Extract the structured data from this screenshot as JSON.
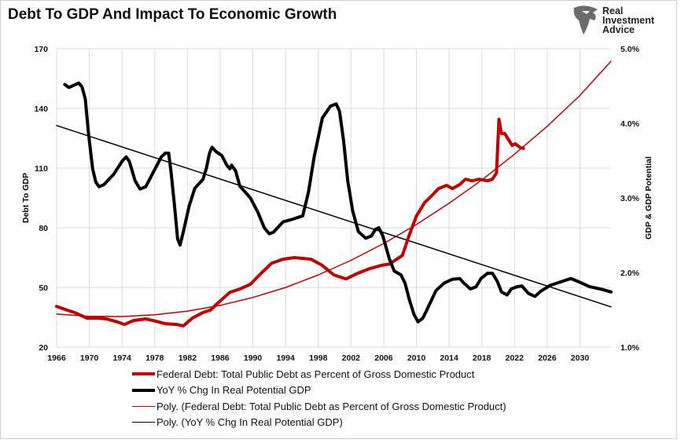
{
  "title": "Debt To GDP And Impact To Economic Growth",
  "logo": {
    "lines": [
      "Real",
      "Investment",
      "Advice"
    ],
    "icon": "eagle-head-icon"
  },
  "chart_data": {
    "type": "line",
    "title": "Debt To GDP And Impact To Economic Growth",
    "xlabel": "",
    "ylabel": "Debt To GDP",
    "y2label": "GDP & GDP Potential",
    "xlim": [
      1966,
      2033.8
    ],
    "ylim": [
      20,
      170
    ],
    "y2lim": [
      1.0,
      5.0
    ],
    "grid": true,
    "legend_position": "bottom",
    "x_ticks": [
      "1966",
      "1970",
      "1974",
      "1978",
      "1982",
      "1986",
      "1990",
      "1994",
      "1998",
      "2002",
      "2006",
      "2010",
      "2014",
      "2018",
      "2022",
      "2026",
      "2030"
    ],
    "y_ticks": [
      "170",
      "140",
      "110",
      "80",
      "50",
      "20"
    ],
    "y2_ticks": [
      "5.0%",
      "4.0%",
      "3.0%",
      "2.0%",
      "1.0%"
    ],
    "series": [
      {
        "name": "Federal Debt: Total Public Debt as Percent of Gross Domestic Product",
        "axis": "left",
        "color": "#c00000",
        "width": "thick",
        "points": [
          [
            1966.0,
            40.5
          ],
          [
            1967.3,
            38.6
          ],
          [
            1968.2,
            37.4
          ],
          [
            1969.7,
            34.6
          ],
          [
            1971.1,
            34.6
          ],
          [
            1972.1,
            34.2
          ],
          [
            1973.5,
            32.6
          ],
          [
            1974.3,
            31.4
          ],
          [
            1975.4,
            33.4
          ],
          [
            1976.9,
            34.2
          ],
          [
            1977.8,
            33.4
          ],
          [
            1979.3,
            31.8
          ],
          [
            1980.7,
            31.4
          ],
          [
            1981.5,
            30.7
          ],
          [
            1982.6,
            34.6
          ],
          [
            1983.9,
            37.4
          ],
          [
            1984.8,
            38.6
          ],
          [
            1985.8,
            42.5
          ],
          [
            1987.2,
            47.6
          ],
          [
            1988.4,
            49.2
          ],
          [
            1989.7,
            51.6
          ],
          [
            1991.0,
            57.1
          ],
          [
            1992.3,
            62.2
          ],
          [
            1993.7,
            64.2
          ],
          [
            1995.1,
            65.0
          ],
          [
            1997.1,
            64.2
          ],
          [
            1998.5,
            61.1
          ],
          [
            1999.9,
            56.3
          ],
          [
            2001.4,
            54.3
          ],
          [
            2002.8,
            57.1
          ],
          [
            2004.3,
            59.5
          ],
          [
            2005.7,
            61.1
          ],
          [
            2006.7,
            61.8
          ],
          [
            2007.6,
            64.2
          ],
          [
            2008.3,
            66.2
          ],
          [
            2009.1,
            76.1
          ],
          [
            2010.0,
            85.9
          ],
          [
            2011.0,
            92.6
          ],
          [
            2011.8,
            95.8
          ],
          [
            2012.7,
            99.7
          ],
          [
            2013.7,
            101.3
          ],
          [
            2014.4,
            99.7
          ],
          [
            2015.3,
            101.7
          ],
          [
            2016.0,
            104.4
          ],
          [
            2016.8,
            103.6
          ],
          [
            2017.7,
            104.4
          ],
          [
            2018.7,
            103.6
          ],
          [
            2019.3,
            104.4
          ],
          [
            2019.8,
            107.6
          ],
          [
            2020.1,
            134.5
          ],
          [
            2020.4,
            127.4
          ],
          [
            2020.8,
            127.4
          ],
          [
            2021.4,
            123.4
          ],
          [
            2021.7,
            121.4
          ],
          [
            2022.1,
            122.2
          ],
          [
            2022.7,
            120.3
          ],
          [
            2023.1,
            119.9
          ]
        ]
      },
      {
        "name": "YoY % Chg In Real Potential GDP",
        "axis": "right",
        "color": "#000000",
        "width": "thick",
        "points": [
          [
            1967.0,
            4.52
          ],
          [
            1967.5,
            4.48
          ],
          [
            1968.7,
            4.54
          ],
          [
            1969.1,
            4.49
          ],
          [
            1969.5,
            4.33
          ],
          [
            1969.9,
            3.86
          ],
          [
            1970.4,
            3.39
          ],
          [
            1970.8,
            3.21
          ],
          [
            1971.2,
            3.15
          ],
          [
            1971.8,
            3.18
          ],
          [
            1973.0,
            3.32
          ],
          [
            1974.0,
            3.49
          ],
          [
            1974.5,
            3.55
          ],
          [
            1974.9,
            3.49
          ],
          [
            1975.6,
            3.23
          ],
          [
            1976.2,
            3.12
          ],
          [
            1976.9,
            3.15
          ],
          [
            1977.8,
            3.34
          ],
          [
            1978.8,
            3.55
          ],
          [
            1979.3,
            3.6
          ],
          [
            1979.7,
            3.6
          ],
          [
            1980.0,
            3.34
          ],
          [
            1980.4,
            2.92
          ],
          [
            1980.8,
            2.45
          ],
          [
            1981.1,
            2.37
          ],
          [
            1981.5,
            2.55
          ],
          [
            1982.2,
            2.89
          ],
          [
            1982.9,
            3.13
          ],
          [
            1983.9,
            3.25
          ],
          [
            1984.3,
            3.39
          ],
          [
            1984.7,
            3.6
          ],
          [
            1985.0,
            3.68
          ],
          [
            1985.5,
            3.62
          ],
          [
            1986.2,
            3.57
          ],
          [
            1986.8,
            3.44
          ],
          [
            1987.2,
            3.39
          ],
          [
            1987.4,
            3.44
          ],
          [
            1987.9,
            3.36
          ],
          [
            1988.4,
            3.16
          ],
          [
            1989.7,
            3.0
          ],
          [
            1990.6,
            2.81
          ],
          [
            1991.4,
            2.6
          ],
          [
            1992.0,
            2.52
          ],
          [
            1992.5,
            2.54
          ],
          [
            1993.7,
            2.68
          ],
          [
            1994.7,
            2.71
          ],
          [
            1996.1,
            2.76
          ],
          [
            1996.8,
            3.08
          ],
          [
            1997.5,
            3.55
          ],
          [
            1998.5,
            4.07
          ],
          [
            1999.5,
            4.23
          ],
          [
            2000.2,
            4.26
          ],
          [
            2000.6,
            4.16
          ],
          [
            2001.1,
            3.76
          ],
          [
            2001.6,
            3.23
          ],
          [
            2002.2,
            2.83
          ],
          [
            2002.9,
            2.55
          ],
          [
            2003.8,
            2.46
          ],
          [
            2004.5,
            2.49
          ],
          [
            2005.0,
            2.58
          ],
          [
            2005.4,
            2.6
          ],
          [
            2005.9,
            2.49
          ],
          [
            2006.7,
            2.18
          ],
          [
            2007.3,
            2.02
          ],
          [
            2008.1,
            1.97
          ],
          [
            2008.6,
            1.86
          ],
          [
            2009.1,
            1.65
          ],
          [
            2009.7,
            1.44
          ],
          [
            2010.2,
            1.34
          ],
          [
            2010.8,
            1.39
          ],
          [
            2011.5,
            1.55
          ],
          [
            2012.4,
            1.76
          ],
          [
            2013.4,
            1.86
          ],
          [
            2014.4,
            1.91
          ],
          [
            2015.3,
            1.92
          ],
          [
            2015.8,
            1.86
          ],
          [
            2016.6,
            1.78
          ],
          [
            2017.3,
            1.81
          ],
          [
            2017.9,
            1.92
          ],
          [
            2018.7,
            1.99
          ],
          [
            2019.3,
            1.99
          ],
          [
            2019.9,
            1.88
          ],
          [
            2020.4,
            1.74
          ],
          [
            2021.1,
            1.7
          ],
          [
            2021.6,
            1.78
          ],
          [
            2022.3,
            1.81
          ],
          [
            2022.9,
            1.82
          ],
          [
            2023.7,
            1.72
          ],
          [
            2024.5,
            1.68
          ],
          [
            2025.2,
            1.75
          ],
          [
            2026.4,
            1.83
          ],
          [
            2027.5,
            1.87
          ],
          [
            2028.9,
            1.92
          ],
          [
            2030.0,
            1.87
          ],
          [
            2031.2,
            1.81
          ],
          [
            2032.5,
            1.78
          ],
          [
            2033.8,
            1.74
          ]
        ]
      },
      {
        "name": "Poly. (Federal Debt: Total Public Debt as Percent of Gross Domestic Product)",
        "axis": "left",
        "color": "#c00000",
        "width": "thin",
        "points": [
          [
            1966,
            36.6
          ],
          [
            1970,
            35.5
          ],
          [
            1974,
            35.4
          ],
          [
            1978,
            36.3
          ],
          [
            1982,
            38.1
          ],
          [
            1986,
            41.0
          ],
          [
            1990,
            45.0
          ],
          [
            1994,
            50.0
          ],
          [
            1998,
            56.3
          ],
          [
            2002,
            63.6
          ],
          [
            2006,
            72.1
          ],
          [
            2010,
            81.6
          ],
          [
            2014,
            92.3
          ],
          [
            2018,
            104.0
          ],
          [
            2022,
            117.0
          ],
          [
            2026,
            131.0
          ],
          [
            2030,
            146.5
          ],
          [
            2033.8,
            163.7
          ]
        ]
      },
      {
        "name": "Poly. (YoY % Chg In Real Potential GDP)",
        "axis": "right",
        "color": "#000000",
        "width": "thin",
        "points": [
          [
            1966,
            3.97
          ],
          [
            2033.8,
            1.54
          ]
        ]
      }
    ]
  }
}
